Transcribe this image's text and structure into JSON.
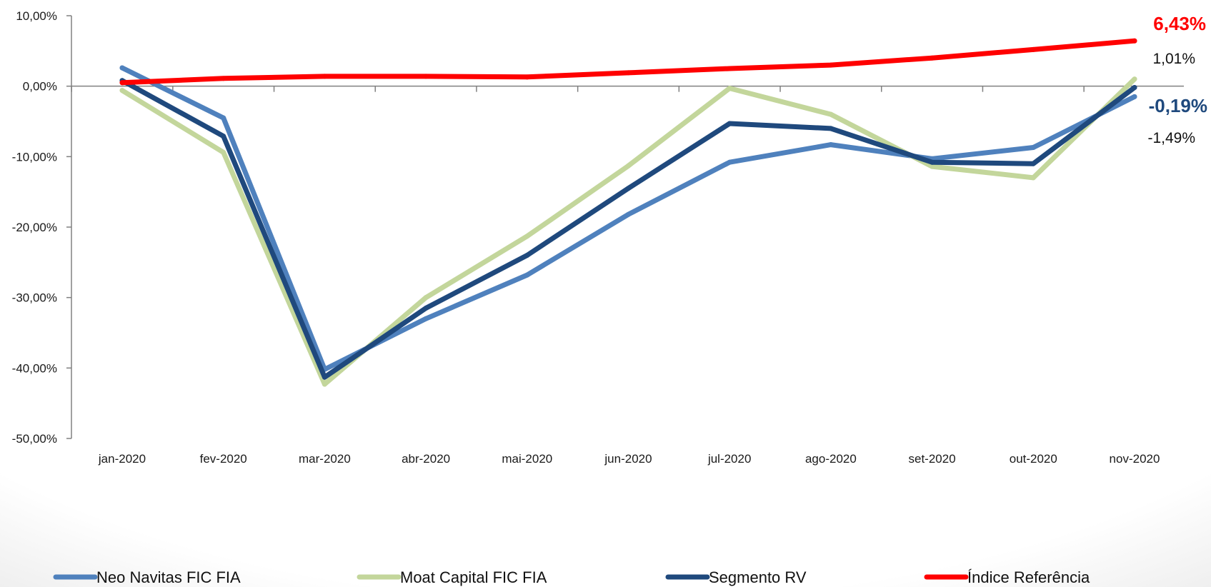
{
  "chart_data": {
    "type": "line",
    "title": "",
    "xlabel": "",
    "ylabel": "",
    "categories": [
      "jan-2020",
      "fev-2020",
      "mar-2020",
      "abr-2020",
      "mai-2020",
      "jun-2020",
      "jul-2020",
      "ago-2020",
      "set-2020",
      "out-2020",
      "nov-2020"
    ],
    "ylim": [
      -50,
      10
    ],
    "yticks": [
      10,
      0,
      -10,
      -20,
      -30,
      -40,
      -50
    ],
    "ytick_labels": [
      "10,00%",
      "0,00%",
      "-10,00%",
      "-20,00%",
      "-30,00%",
      "-40,00%",
      "-50,00%"
    ],
    "grid": false,
    "legend_position": "bottom",
    "series": [
      {
        "name": "Neo Navitas FIC FIA",
        "color": "#4f81bd",
        "values": [
          2.6,
          -4.5,
          -40.2,
          -33.0,
          -26.8,
          -18.2,
          -10.8,
          -8.3,
          -10.3,
          -8.7,
          -1.49
        ]
      },
      {
        "name": "Moat Capital FIC FIA",
        "color": "#c3d69b",
        "values": [
          -0.6,
          -9.4,
          -42.3,
          -30.0,
          -21.3,
          -11.3,
          -0.3,
          -4.0,
          -11.4,
          -13.0,
          1.01
        ]
      },
      {
        "name": "Segmento RV",
        "color": "#1f497d",
        "values": [
          0.8,
          -7.1,
          -41.3,
          -31.5,
          -24.0,
          -14.5,
          -5.3,
          -6.0,
          -10.8,
          -11.0,
          -0.19
        ]
      },
      {
        "name": "Índice Referência",
        "color": "#ff0000",
        "values": [
          0.5,
          1.1,
          1.4,
          1.4,
          1.3,
          1.9,
          2.5,
          3.0,
          4.0,
          5.2,
          6.43
        ]
      }
    ],
    "end_labels": [
      {
        "text": "6,43%",
        "series": "Índice Referência",
        "color": "#ff0000",
        "bold": true
      },
      {
        "text": "1,01%",
        "series": "Moat Capital FIC FIA",
        "color": "#111111",
        "bold": false
      },
      {
        "text": "-0,19%",
        "series": "Segmento RV",
        "color": "#1f497d",
        "bold": true
      },
      {
        "text": "-1,49%",
        "series": "Neo Navitas FIC FIA",
        "color": "#111111",
        "bold": false
      }
    ]
  }
}
